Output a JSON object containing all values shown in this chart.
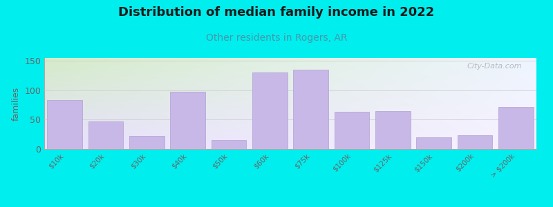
{
  "title": "Distribution of median family income in 2022",
  "subtitle": "Other residents in Rogers, AR",
  "categories": [
    "$10k",
    "$20k",
    "$30k",
    "$40k",
    "$50k",
    "$60k",
    "$75k",
    "$100k",
    "$125k",
    "$150k",
    "$200k",
    "> $200k"
  ],
  "values": [
    83,
    47,
    22,
    98,
    15,
    130,
    135,
    63,
    65,
    20,
    23,
    72
  ],
  "bar_color": "#c8b8e8",
  "bar_edgecolor": "#b0a0d0",
  "background_color": "#00eeee",
  "grad_color_topleft": "#d4ecc8",
  "grad_color_bottomright": "#f0ecff",
  "ylabel": "families",
  "ylim": [
    0,
    155
  ],
  "yticks": [
    0,
    50,
    100,
    150
  ],
  "title_fontsize": 13,
  "subtitle_fontsize": 10,
  "subtitle_color": "#4499aa",
  "watermark": "City-Data.com",
  "tick_color": "#666666",
  "spine_color": "#aaaaaa"
}
